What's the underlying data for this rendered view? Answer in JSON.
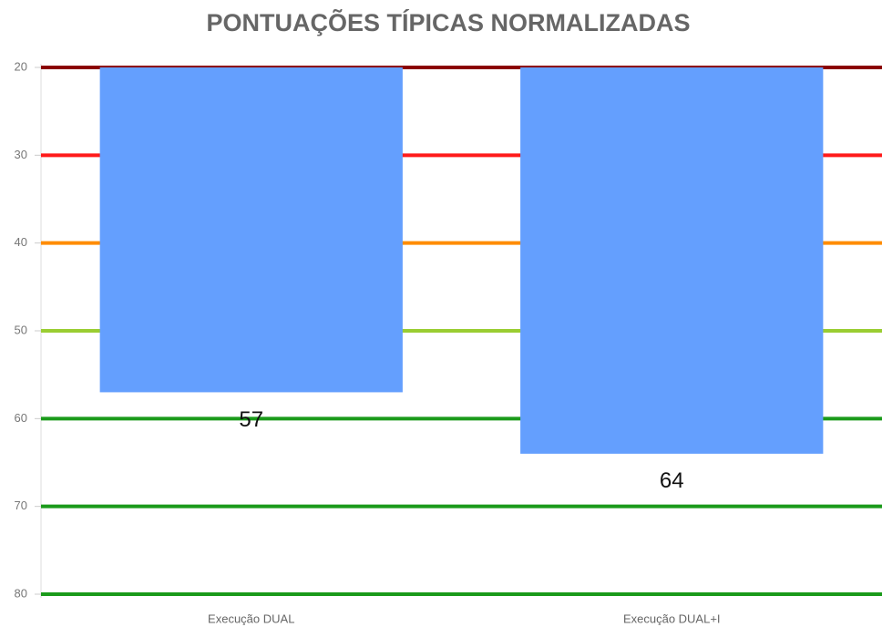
{
  "chart_data": {
    "type": "bar",
    "title": "PONTUAÇÕES TÍPICAS NORMALIZADAS",
    "categories": [
      "Execução DUAL",
      "Execução DUAL+I"
    ],
    "values": [
      57,
      64
    ],
    "color": "#649ffe",
    "ylim": [
      20,
      80
    ],
    "yticks": [
      20,
      30,
      40,
      50,
      60,
      70,
      80
    ],
    "y_inverted": true,
    "grid": true,
    "grid_colors": [
      "#8b0000",
      "#ff1a1a",
      "#ff8c00",
      "#9acd32",
      "#1a9a1a",
      "#1a9a1a",
      "#1a9a1a"
    ]
  }
}
